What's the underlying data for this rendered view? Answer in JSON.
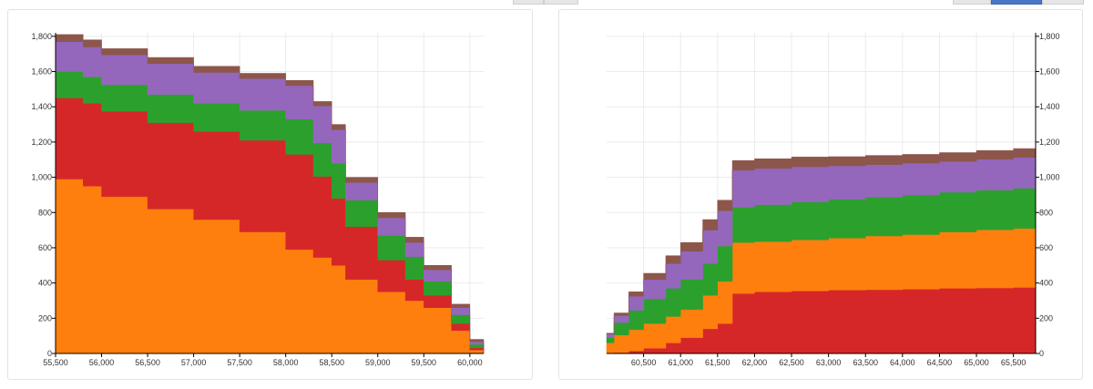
{
  "chart_data": [
    {
      "type": "area",
      "stacked": true,
      "grid": true,
      "y_axis_side": "left",
      "xlim": [
        55500,
        60150
      ],
      "ylim": [
        0,
        1820
      ],
      "x_ticks": [
        55500,
        56000,
        56500,
        57000,
        57500,
        58000,
        58500,
        59000,
        59500,
        60000
      ],
      "x_tick_labels": [
        "55,500",
        "56,000",
        "56,500",
        "57,000",
        "57,500",
        "58,000",
        "58,500",
        "59,000",
        "59,500",
        "60,000"
      ],
      "y_ticks": [
        0,
        200,
        400,
        600,
        800,
        1000,
        1200,
        1400,
        1600,
        1800
      ],
      "y_tick_labels": [
        "0",
        "200",
        "400",
        "600",
        "800",
        "1,000",
        "1,200",
        "1,400",
        "1,600",
        "1,800"
      ],
      "x": [
        55500,
        55800,
        56000,
        56500,
        57000,
        57500,
        58000,
        58300,
        58500,
        58650,
        59000,
        59300,
        59500,
        59800,
        60000,
        60150
      ],
      "series": [
        {
          "color": "#ff7f0e",
          "values": [
            990,
            950,
            890,
            820,
            760,
            690,
            590,
            545,
            500,
            420,
            350,
            300,
            260,
            130,
            20,
            0
          ]
        },
        {
          "color": "#d62728",
          "values": [
            460,
            470,
            485,
            490,
            500,
            520,
            540,
            460,
            380,
            300,
            180,
            120,
            70,
            40,
            12,
            0
          ]
        },
        {
          "color": "#2ca02c",
          "values": [
            150,
            150,
            150,
            160,
            160,
            170,
            200,
            190,
            200,
            150,
            140,
            130,
            80,
            50,
            20,
            0
          ]
        },
        {
          "color": "#9467bd",
          "values": [
            170,
            170,
            170,
            175,
            175,
            180,
            190,
            210,
            190,
            100,
            100,
            80,
            65,
            40,
            15,
            0
          ]
        },
        {
          "color": "#8c564b",
          "values": [
            40,
            40,
            35,
            35,
            35,
            30,
            30,
            25,
            30,
            30,
            30,
            30,
            25,
            20,
            13,
            0
          ]
        }
      ]
    },
    {
      "type": "area",
      "stacked": true,
      "grid": true,
      "y_axis_side": "right",
      "xlim": [
        60000,
        65800
      ],
      "ylim": [
        0,
        1820
      ],
      "x_ticks": [
        60500,
        61000,
        61500,
        62000,
        62500,
        63000,
        63500,
        64000,
        64500,
        65000,
        65500
      ],
      "x_tick_labels": [
        "60,500",
        "61,000",
        "61,500",
        "62,000",
        "62,500",
        "63,000",
        "63,500",
        "64,000",
        "64,500",
        "65,000",
        "65,500"
      ],
      "y_ticks": [
        0,
        200,
        400,
        600,
        800,
        1000,
        1200,
        1400,
        1600,
        1800
      ],
      "y_tick_labels": [
        "0",
        "200",
        "400",
        "600",
        "800",
        "1,000",
        "1,200",
        "1,400",
        "1,600",
        "1,800"
      ],
      "x": [
        60000,
        60100,
        60300,
        60500,
        60800,
        61000,
        61300,
        61500,
        61700,
        62000,
        62500,
        63000,
        63500,
        64000,
        64500,
        65000,
        65500,
        65800
      ],
      "series": [
        {
          "color": "#d62728",
          "values": [
            0,
            5,
            15,
            30,
            60,
            90,
            140,
            170,
            340,
            350,
            355,
            360,
            362,
            365,
            370,
            372,
            375,
            378
          ]
        },
        {
          "color": "#ff7f0e",
          "values": [
            60,
            100,
            120,
            140,
            150,
            160,
            190,
            240,
            290,
            285,
            290,
            295,
            305,
            310,
            320,
            330,
            335,
            340
          ]
        },
        {
          "color": "#2ca02c",
          "values": [
            30,
            70,
            110,
            140,
            160,
            170,
            180,
            200,
            200,
            210,
            215,
            220,
            220,
            225,
            225,
            225,
            228,
            230
          ]
        },
        {
          "color": "#9467bd",
          "values": [
            20,
            40,
            80,
            110,
            140,
            160,
            190,
            200,
            210,
            205,
            200,
            190,
            185,
            180,
            175,
            175,
            175,
            180
          ]
        },
        {
          "color": "#8c564b",
          "values": [
            5,
            15,
            25,
            35,
            45,
            50,
            60,
            60,
            55,
            55,
            55,
            52,
            52,
            50,
            50,
            50,
            50,
            52
          ]
        }
      ]
    }
  ]
}
